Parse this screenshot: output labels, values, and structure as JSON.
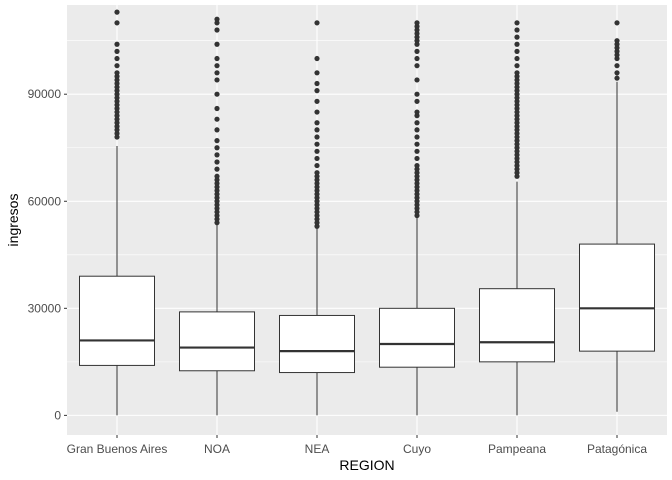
{
  "chart_data": {
    "type": "boxplot",
    "title": "",
    "xlabel": "REGION",
    "ylabel": "ingresos",
    "ylim": [
      -5500,
      115000
    ],
    "y_ticks": [
      0,
      30000,
      60000,
      90000
    ],
    "y_tick_labels": [
      "0",
      "30000",
      "60000",
      "90000"
    ],
    "grid": true,
    "colors": {
      "panel": "#ebebeb",
      "grid_major": "#ffffff",
      "box_fill": "#ffffff",
      "box_stroke": "#333333",
      "outlier": "#333333",
      "tick_label": "#4d4d4d",
      "axis_title": "#000000"
    },
    "categories": [
      "Gran Buenos Aires",
      "NOA",
      "NEA",
      "Cuyo",
      "Pampeana",
      "Patagónica"
    ],
    "boxes": [
      {
        "category": "Gran Buenos Aires",
        "whisker_low": 0,
        "q1": 14000,
        "median": 21000,
        "q3": 39000,
        "whisker_high": 75500,
        "outliers": [
          78000,
          79000,
          80000,
          81000,
          82000,
          83000,
          84000,
          85000,
          86000,
          87000,
          88000,
          89000,
          90000,
          91000,
          92000,
          93000,
          94000,
          95000,
          96000,
          98000,
          100000,
          102000,
          104000,
          110000,
          113000
        ]
      },
      {
        "category": "NOA",
        "whisker_low": 0,
        "q1": 12500,
        "median": 19000,
        "q3": 29000,
        "whisker_high": 53500,
        "outliers": [
          54000,
          55000,
          56000,
          57000,
          58000,
          59000,
          60000,
          61000,
          62000,
          63000,
          64000,
          65000,
          66000,
          67000,
          69000,
          71000,
          73000,
          75000,
          77000,
          80000,
          83000,
          86000,
          90000,
          94000,
          96000,
          98000,
          100000,
          104000,
          108000,
          110000,
          111000
        ]
      },
      {
        "category": "NEA",
        "whisker_low": 0,
        "q1": 12000,
        "median": 18000,
        "q3": 28000,
        "whisker_high": 52500,
        "outliers": [
          53000,
          54000,
          55000,
          56000,
          57000,
          58000,
          59000,
          60000,
          61000,
          62000,
          63000,
          64000,
          65000,
          66000,
          67000,
          68000,
          70000,
          72000,
          74000,
          76000,
          78000,
          80000,
          82000,
          85000,
          88000,
          91000,
          93000,
          96000,
          100000,
          110000
        ]
      },
      {
        "category": "Cuyo",
        "whisker_low": 0,
        "q1": 13500,
        "median": 20000,
        "q3": 30000,
        "whisker_high": 55500,
        "outliers": [
          56000,
          57000,
          58000,
          59000,
          60000,
          61000,
          62000,
          63000,
          64000,
          65000,
          66000,
          67000,
          68000,
          69000,
          70000,
          72000,
          74000,
          76000,
          78000,
          80000,
          82000,
          84000,
          85000,
          88000,
          90000,
          94000,
          98000,
          100000,
          102000,
          104000,
          105000,
          106000,
          107000,
          108000,
          109000,
          110000
        ]
      },
      {
        "category": "Pampeana",
        "whisker_low": 0,
        "q1": 15000,
        "median": 20500,
        "q3": 35500,
        "whisker_high": 65500,
        "outliers": [
          67000,
          68000,
          69000,
          70000,
          71000,
          72000,
          73000,
          74000,
          75000,
          76000,
          77000,
          78000,
          79000,
          80000,
          81000,
          82000,
          83000,
          84000,
          85000,
          86000,
          87000,
          88000,
          89000,
          90000,
          91000,
          92000,
          93000,
          94000,
          95000,
          96000,
          98000,
          100000,
          102000,
          104000,
          106000,
          108000,
          110000
        ]
      },
      {
        "category": "Patagónica",
        "whisker_low": 1000,
        "q1": 18000,
        "median": 30000,
        "q3": 48000,
        "whisker_high": 93500,
        "outliers": [
          94500,
          96000,
          98000,
          100000,
          101000,
          102000,
          103000,
          104000,
          105000,
          110000
        ]
      }
    ]
  }
}
